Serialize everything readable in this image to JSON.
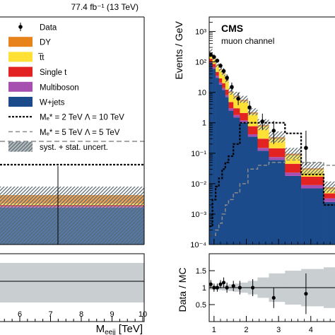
{
  "colors": {
    "DY": "#e8821a",
    "ttbar": "#ffe135",
    "single_t": "#e32222",
    "multiboson": "#a64fb0",
    "wjets": "#1c4b8c",
    "uncert": "#9aa3a8",
    "ratio_band": "#c9ced1",
    "signal": "#000000",
    "signal2": "#8a8a8a"
  },
  "left_panel": {
    "lumi_label": "77.4 fb⁻¹ (13 TeV)",
    "legend": [
      {
        "key": "data",
        "label": "Data",
        "style": "marker"
      },
      {
        "key": "DY",
        "label": "DY",
        "style": "fill"
      },
      {
        "key": "ttbar",
        "label": "t̅t",
        "style": "fill"
      },
      {
        "key": "single_t",
        "label": "Single t",
        "style": "fill"
      },
      {
        "key": "multiboson",
        "label": "Multiboson",
        "style": "fill"
      },
      {
        "key": "wjets",
        "label": "W+jets",
        "style": "fill"
      },
      {
        "key": "sig1",
        "label": "Mₑ* = 2 TeV Λ = 10 TeV",
        "style": "dotted"
      },
      {
        "key": "sig2",
        "label": "Mₑ* = 5 TeV Λ = 5 TeV",
        "style": "dashed"
      },
      {
        "key": "uncert",
        "label": "syst. + stat. uncert.",
        "style": "hatch"
      }
    ],
    "x_axis_label": "Mₑₑⱼⱼ [TeV]",
    "x_ticks": [
      "6",
      "7",
      "8",
      "9",
      "10"
    ]
  },
  "right_panel": {
    "cms_label": "CMS",
    "channel_label": "muon channel",
    "y_axis_label": "Events / GeV",
    "ratio_y_label": "Data / MC",
    "y_ticks": [
      "10³",
      "10²",
      "10",
      "1",
      "10⁻¹",
      "10⁻²",
      "10⁻³",
      "10⁻⁴"
    ],
    "ratio_ticks": [
      "1.5",
      "1",
      "0.5"
    ],
    "x_ticks": [
      "1",
      "2",
      "3",
      "4"
    ]
  },
  "chart_data": {
    "type": "bar",
    "yscale": "log",
    "ylim": [
      0.0001,
      3000
    ],
    "xlim": [
      0.85,
      4.75
    ],
    "bin_edges": [
      0.85,
      0.95,
      1.05,
      1.15,
      1.25,
      1.35,
      1.45,
      1.6,
      1.8,
      2.05,
      2.35,
      2.7,
      3.2,
      3.7,
      4.4,
      4.75
    ],
    "series": [
      {
        "name": "W+jets",
        "values": [
          90,
          60,
          30,
          18,
          12,
          7,
          2.5,
          1.5,
          1.0,
          0.35,
          0.12,
          0.06,
          0.018,
          0.007,
          0.0025
        ]
      },
      {
        "name": "Multiboson",
        "values": [
          12,
          8,
          5,
          3,
          2,
          1.2,
          0.5,
          0.3,
          0.2,
          0.07,
          0.03,
          0.015,
          0.005,
          0.002,
          0.0008
        ]
      },
      {
        "name": "Single t",
        "values": [
          25,
          18,
          12,
          8,
          6,
          4,
          1.8,
          1.2,
          0.9,
          0.35,
          0.15,
          0.07,
          0.022,
          0.008,
          0.0015
        ]
      },
      {
        "name": "t̅t",
        "values": [
          60,
          40,
          30,
          25,
          20,
          12,
          5,
          4,
          3,
          1.2,
          0.45,
          0.15,
          0.04,
          0.012,
          0.002
        ]
      },
      {
        "name": "DY",
        "values": [
          10,
          7,
          5,
          4,
          3,
          2,
          0.8,
          0.7,
          0.6,
          0.25,
          0.1,
          0.04,
          0.012,
          0.003,
          0.0008
        ]
      }
    ],
    "data_points": {
      "x": [
        0.9,
        1.0,
        1.1,
        1.2,
        1.3,
        1.4,
        1.55,
        1.75,
        2.1,
        2.5,
        2.85,
        3.85
      ],
      "y": [
        170,
        145,
        110,
        75,
        50,
        30,
        15,
        6.2,
        3.2,
        1.1,
        0.55,
        0.15
      ],
      "yerr_up": [
        25,
        22,
        18,
        15,
        12,
        9,
        6,
        3.5,
        2.0,
        0.9,
        0.6,
        0.4
      ],
      "yerr_down": [
        20,
        18,
        15,
        12,
        9,
        7,
        4.5,
        2.4,
        1.3,
        0.5,
        0.35,
        0.11
      ]
    },
    "signal_1": {
      "label": "Mₑ* = 2 TeV Λ = 10 TeV",
      "values": [
        0.0004,
        0.003,
        0.008,
        0.015,
        0.03,
        0.05,
        0.08,
        0.2,
        1.0,
        1.0,
        1.0,
        1.0,
        0.45,
        0.02,
        0.002
      ]
    },
    "signal_2": {
      "label": "Mₑ* = 5 TeV Λ = 5 TeV",
      "values": [
        0.0002,
        0.0002,
        0.0003,
        0.0005,
        0.001,
        0.002,
        0.003,
        0.005,
        0.01,
        0.03,
        0.04,
        0.05,
        0.06,
        0.05,
        0.04
      ]
    },
    "ratio": {
      "ylim": [
        0,
        2
      ],
      "x": [
        0.9,
        1.0,
        1.1,
        1.2,
        1.3,
        1.4,
        1.6,
        1.8,
        2.2,
        2.85,
        3.85
      ],
      "y": [
        1.1,
        1.0,
        1.0,
        1.1,
        1.15,
        1.0,
        1.05,
        1.0,
        1.0,
        0.7,
        0.82
      ],
      "yerr": [
        0.12,
        0.12,
        0.12,
        0.12,
        0.15,
        0.15,
        0.15,
        0.2,
        0.25,
        0.3,
        0.6
      ]
    }
  }
}
